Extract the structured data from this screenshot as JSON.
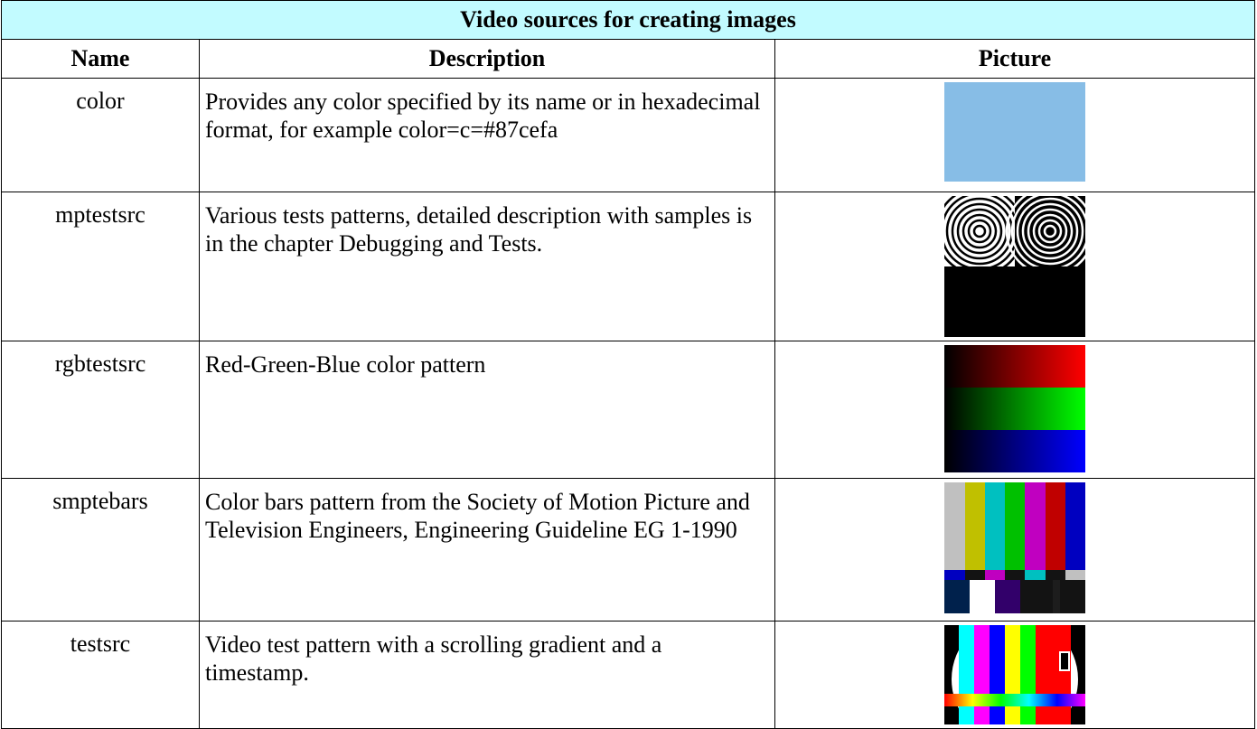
{
  "table": {
    "title": "Video sources for creating images",
    "header": [
      "Name",
      "Description",
      "Picture"
    ],
    "rows": [
      [
        "color",
        "Provides any color specified by its name or in hexadecimal format, for example color=c=#87cefa"
      ],
      [
        "mptestsrc",
        "Various tests patterns, detailed description with samples is in the chapter Debugging and Tests."
      ],
      [
        "rgbtestsrc",
        "Red-Green-Blue color pattern"
      ],
      [
        "smptebars",
        "Color bars pattern from  the Society of Motion Picture and Television Engineers, Engineering Guideline EG 1-1990"
      ],
      [
        "testsrc",
        "Video test pattern with a scrolling gradient and a timestamp."
      ]
    ]
  }
}
